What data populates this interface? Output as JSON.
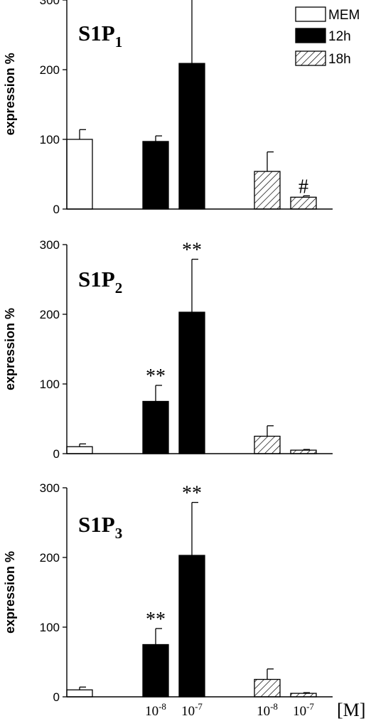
{
  "chart_data": [
    {
      "type": "bar",
      "title": "S1P",
      "title_subscript": "1",
      "ylabel": "expression %",
      "ylim": [
        0,
        330
      ],
      "yticks": [
        "0",
        "100",
        "200",
        "300"
      ],
      "bars": [
        {
          "series": "MEM",
          "category": "",
          "value": 100,
          "error": 14,
          "annotation": ""
        },
        {
          "series": "12h",
          "category": "10-8",
          "value": 97,
          "error": 8,
          "annotation": ""
        },
        {
          "series": "12h",
          "category": "10-7",
          "value": 209,
          "error": 92,
          "annotation": "*"
        },
        {
          "series": "18h",
          "category": "10-8",
          "value": 54,
          "error": 28,
          "annotation": ""
        },
        {
          "series": "18h",
          "category": "10-7",
          "value": 17,
          "error": 2,
          "annotation": "#"
        }
      ]
    },
    {
      "type": "bar",
      "title": "S1P",
      "title_subscript": "2",
      "ylabel": "expression %",
      "ylim": [
        0,
        300
      ],
      "yticks": [
        "0",
        "100",
        "200",
        "300"
      ],
      "bars": [
        {
          "series": "MEM",
          "category": "",
          "value": 10,
          "error": 4,
          "annotation": ""
        },
        {
          "series": "12h",
          "category": "10-8",
          "value": 75,
          "error": 23,
          "annotation": "**"
        },
        {
          "series": "12h",
          "category": "10-7",
          "value": 203,
          "error": 76,
          "annotation": "**"
        },
        {
          "series": "18h",
          "category": "10-8",
          "value": 25,
          "error": 15,
          "annotation": ""
        },
        {
          "series": "18h",
          "category": "10-7",
          "value": 5,
          "error": 1,
          "annotation": ""
        }
      ]
    },
    {
      "type": "bar",
      "title": "S1P",
      "title_subscript": "3",
      "ylabel": "expression %",
      "ylim": [
        0,
        300
      ],
      "yticks": [
        "0",
        "100",
        "200",
        "300"
      ],
      "bars": [
        {
          "series": "MEM",
          "category": "",
          "value": 10,
          "error": 4,
          "annotation": ""
        },
        {
          "series": "12h",
          "category": "10-8",
          "value": 75,
          "error": 23,
          "annotation": "**"
        },
        {
          "series": "12h",
          "category": "10-7",
          "value": 203,
          "error": 76,
          "annotation": "**"
        },
        {
          "series": "18h",
          "category": "10-8",
          "value": 25,
          "error": 15,
          "annotation": ""
        },
        {
          "series": "18h",
          "category": "10-7",
          "value": 5,
          "error": 1,
          "annotation": ""
        }
      ]
    }
  ],
  "legend": {
    "placement": "top-right",
    "items": [
      {
        "label": "MEM",
        "style": "open"
      },
      {
        "label": "12h",
        "style": "solid"
      },
      {
        "label": "18h",
        "style": "hatched"
      }
    ]
  },
  "x_axis": {
    "categories": [
      {
        "base": "10",
        "exp": "-8"
      },
      {
        "base": "10",
        "exp": "-7"
      },
      {
        "base": "10",
        "exp": "-8"
      },
      {
        "base": "10",
        "exp": "-7"
      }
    ],
    "unit": "[M]"
  },
  "colors": {
    "MEM": "#ffffff",
    "12h": "#000000",
    "18h_hatch": "#000000",
    "axis": "#000000"
  }
}
